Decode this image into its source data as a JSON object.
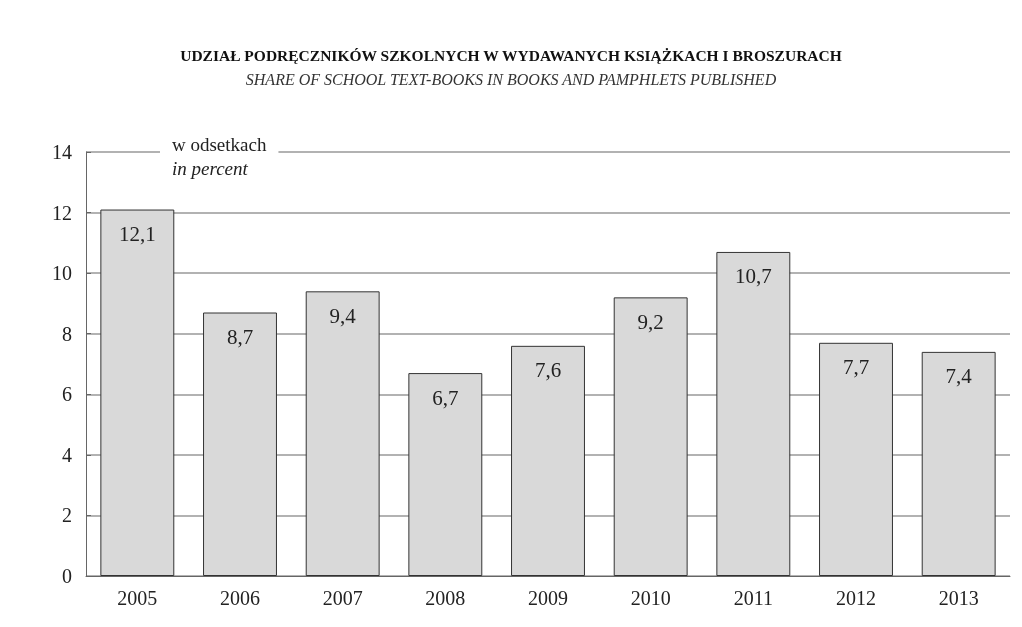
{
  "chart_data": {
    "type": "bar",
    "title": "UDZIAŁ PODRĘCZNIKÓW SZKOLNYCH W WYDAWANYCH KSIĄŻKACH I BROSZURACH",
    "subtitle": "SHARE OF SCHOOL TEXT-BOOKS IN BOOKS AND PAMPHLETS PUBLISHED",
    "ylabel": "w odsetkach",
    "annotations": [
      "in percent"
    ],
    "categories": [
      "2005",
      "2006",
      "2007",
      "2008",
      "2009",
      "2010",
      "2011",
      "2012",
      "2013"
    ],
    "values": [
      12.1,
      8.7,
      9.4,
      6.7,
      7.6,
      9.2,
      10.7,
      7.7,
      7.4
    ],
    "value_labels": [
      "12,1",
      "8,7",
      "9,4",
      "6,7",
      "7,6",
      "9,2",
      "10,7",
      "7,7",
      "7,4"
    ],
    "color": "#d9d9d9",
    "ylim": [
      0,
      14
    ],
    "yticks": [
      0,
      2,
      4,
      6,
      8,
      10,
      12,
      14
    ],
    "grid": "y"
  }
}
